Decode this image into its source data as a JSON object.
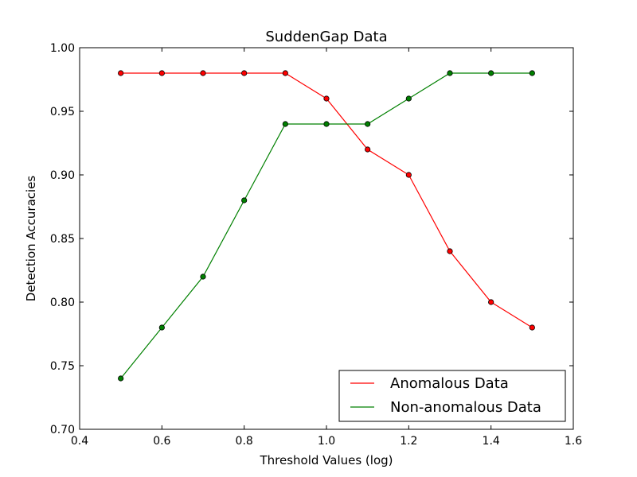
{
  "chart_data": {
    "type": "line",
    "title": "SuddenGap Data",
    "xlabel": "Threshold Values (log)",
    "ylabel": "Detection Accuracies",
    "xlim": [
      0.4,
      1.6
    ],
    "ylim": [
      0.7,
      1.0
    ],
    "xticks": [
      "0.4",
      "0.6",
      "0.8",
      "1.0",
      "1.2",
      "1.4",
      "1.6"
    ],
    "yticks": [
      "0.70",
      "0.75",
      "0.80",
      "0.85",
      "0.90",
      "0.95",
      "1.00"
    ],
    "grid": false,
    "legend_position": "lower-right",
    "x": [
      0.5,
      0.6,
      0.7,
      0.8,
      0.9,
      1.0,
      1.1,
      1.2,
      1.3,
      1.4,
      1.5
    ],
    "series": [
      {
        "name": "Anomalous Data",
        "color": "#ff0000",
        "values": [
          0.98,
          0.98,
          0.98,
          0.98,
          0.98,
          0.96,
          0.92,
          0.9,
          0.84,
          0.8,
          0.78
        ]
      },
      {
        "name": "Non-anomalous Data",
        "color": "#008000",
        "values": [
          0.74,
          0.78,
          0.82,
          0.88,
          0.94,
          0.94,
          0.94,
          0.96,
          0.98,
          0.98,
          0.98
        ]
      }
    ]
  }
}
